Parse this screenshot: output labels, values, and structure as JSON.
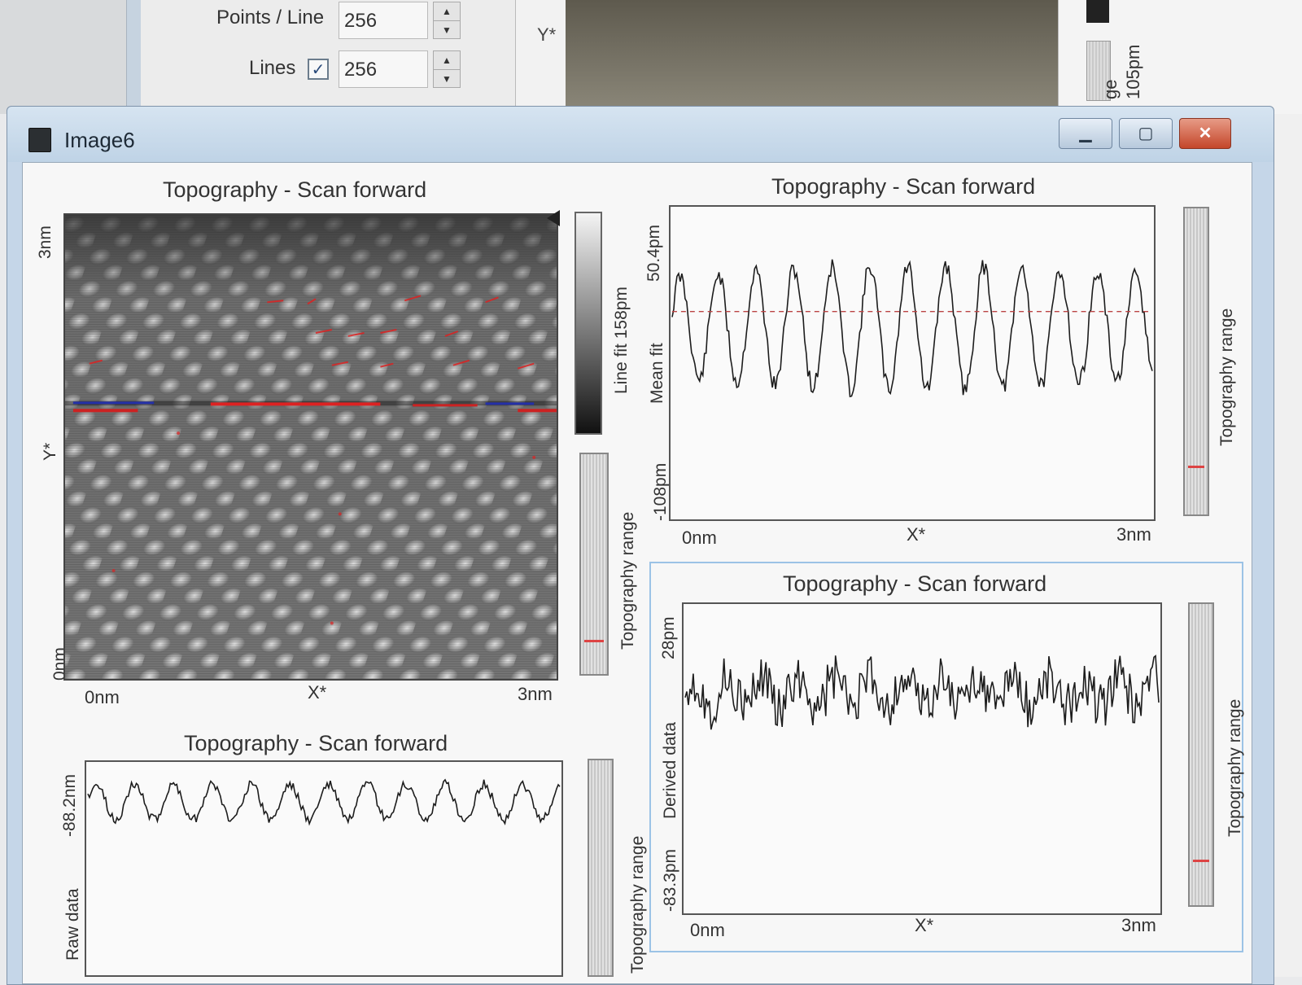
{
  "settings": {
    "points_per_line_label": "Points / Line",
    "points_per_line_value": "256",
    "lines_label": "Lines",
    "lines_checked": "✓",
    "lines_value": "256"
  },
  "background": {
    "y_label": "Y*",
    "right_vertical_text_1": "ge",
    "right_vertical_text_2": "105pm"
  },
  "window": {
    "title": "Image6",
    "minimize": "▁",
    "maximize": "▢",
    "close": "✕"
  },
  "panels": {
    "image": {
      "title": "Topography - Scan forward",
      "y_top": "3nm",
      "y_mid": "Y*",
      "y_bottom": "0nm",
      "x_left": "0nm",
      "x_mid": "X*",
      "x_right": "3nm",
      "colorbar_label": "Line fit 158pm",
      "range_label": "Topography range"
    },
    "line_top": {
      "title": "Topography - Scan forward",
      "y_top": "50.4pm",
      "y_mid": "Mean fit",
      "y_bottom": "-108pm",
      "x_left": "0nm",
      "x_mid": "X*",
      "x_right": "3nm",
      "range_label": "Topography range"
    },
    "line_bottom_left": {
      "title": "Topography - Scan forward",
      "y_top": "-88.2nm",
      "y_mid": "Raw data",
      "range_label": "Topography range"
    },
    "line_bottom_right": {
      "title": "Topography - Scan forward",
      "y_top": "28pm",
      "y_mid": "Derived data",
      "y_bottom": "-83.3pm",
      "x_left": "0nm",
      "x_mid": "X*",
      "x_right": "3nm",
      "range_label": "Topography range"
    }
  },
  "colors": {
    "trace": "#1c1c1c",
    "mean_line": "#b44",
    "window_frame": "#c5d6e8",
    "close_button": "#c4462a"
  }
}
